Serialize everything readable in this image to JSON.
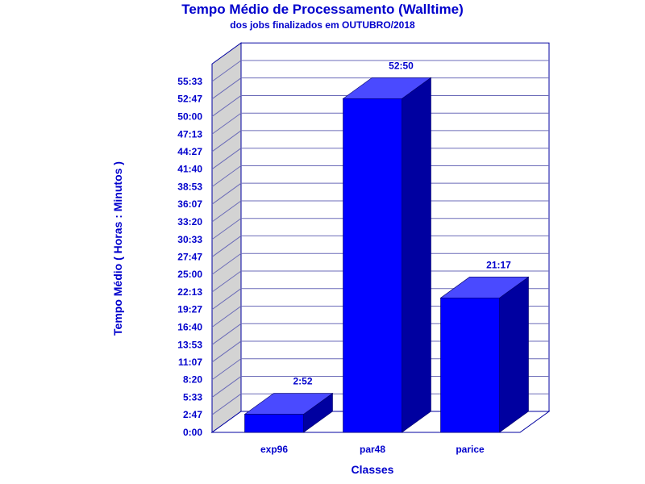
{
  "chart_data": {
    "type": "bar",
    "title": "Tempo Médio de Processamento (Walltime)",
    "subtitle": "dos jobs finalizados em OUTUBRO/2018",
    "xlabel": "Classes",
    "ylabel": "Tempo Médio ( Horas : Minutos )",
    "categories": [
      "exp96",
      "par48",
      "parice"
    ],
    "values_minutes": [
      172,
      3170,
      1277
    ],
    "data_labels": [
      "2:52",
      "52:50",
      "21:17"
    ],
    "ylim_minutes": [
      0,
      3500
    ],
    "y_ticks": [
      "0:00",
      "2:47",
      "5:33",
      "8:20",
      "11:07",
      "13:53",
      "16:40",
      "19:27",
      "22:13",
      "25:00",
      "27:47",
      "30:33",
      "33:20",
      "36:07",
      "38:53",
      "41:40",
      "44:27",
      "47:13",
      "50:00",
      "52:47",
      "55:33"
    ],
    "grid": true,
    "legend": "none"
  },
  "colors": {
    "text": "#0000cc",
    "bar_front": "#0000ff",
    "bar_top": "#4a4aff",
    "bar_side": "#0000a0",
    "wall": "#d3d3d3",
    "grid": "#6b6bb8"
  }
}
